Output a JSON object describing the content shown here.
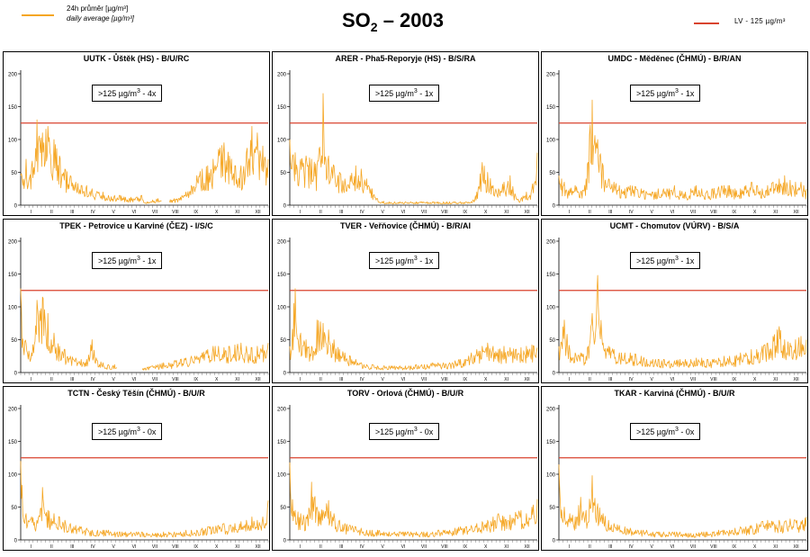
{
  "figure": {
    "title_prefix": "SO",
    "title_subscript": "2",
    "title_suffix": " – 2003",
    "legend_daily_cs": "24h průměr [µg/m³]",
    "legend_daily_en": "daily average [µg/m³]",
    "legend_lv": "LV    - 125 µg/m³",
    "colors": {
      "series": "#f5a623",
      "limit": "#d9432e",
      "axis": "#000000"
    }
  },
  "chart_data": [
    {
      "type": "line",
      "title": "UUTK - Ůštěk (HS) - B/U/RC",
      "ylim": [
        0,
        200
      ],
      "yticks": [
        "0",
        "50",
        "100",
        "150",
        "200"
      ],
      "xticks": [
        "I",
        "II",
        "III",
        "IV",
        "V",
        "VI",
        "VII",
        "VIII",
        "IX",
        "X",
        "XI",
        "XII"
      ],
      "limit_value": 125,
      "exceedance_prefix": ">125 µg/m",
      "exceedance_suffix": " - 4x",
      "envelope": [
        45,
        70,
        60,
        130,
        110,
        120,
        100,
        75,
        55,
        45,
        35,
        30,
        30,
        25,
        20,
        20,
        15,
        15,
        15,
        12,
        12,
        12,
        15,
        5,
        8,
        10,
        8,
        8,
        10,
        12,
        20,
        30,
        45,
        55,
        60,
        70,
        85,
        95,
        75,
        60,
        60,
        80,
        120,
        110,
        90,
        70
      ],
      "gaps": [
        [
          0.57,
          0.6
        ]
      ]
    },
    {
      "type": "line",
      "title": "ARER - Pha5-Reporyje (HS) - B/S/RA",
      "ylim": [
        0,
        200
      ],
      "yticks": [
        "0",
        "50",
        "100",
        "150",
        "200"
      ],
      "xticks": [
        "I",
        "II",
        "III",
        "IV",
        "V",
        "VI",
        "VII",
        "VIII",
        "IX",
        "X",
        "XI",
        "XII"
      ],
      "limit_value": 125,
      "exceedance_prefix": ">125 µg/m",
      "exceedance_suffix": " - 1x",
      "envelope": [
        100,
        80,
        70,
        75,
        70,
        60,
        170,
        75,
        60,
        50,
        40,
        45,
        60,
        55,
        40,
        25,
        10,
        6,
        5,
        5,
        5,
        5,
        5,
        5,
        5,
        5,
        5,
        5,
        5,
        5,
        5,
        5,
        5,
        5,
        20,
        65,
        50,
        30,
        25,
        35,
        45,
        15,
        10,
        20,
        25,
        80
      ],
      "gaps": []
    },
    {
      "type": "line",
      "title": "UMDC - Měděnec (ČHMÚ) - B/R/AN",
      "ylim": [
        0,
        200
      ],
      "yticks": [
        "0",
        "50",
        "100",
        "150",
        "200"
      ],
      "xticks": [
        "I",
        "II",
        "III",
        "IV",
        "V",
        "VI",
        "VII",
        "VIII",
        "IX",
        "X",
        "XI",
        "XII"
      ],
      "limit_value": 125,
      "exceedance_prefix": ">125 µg/m",
      "exceedance_suffix": " - 1x",
      "envelope": [
        45,
        35,
        25,
        30,
        20,
        40,
        160,
        100,
        60,
        40,
        35,
        30,
        25,
        30,
        28,
        25,
        20,
        20,
        25,
        25,
        25,
        30,
        22,
        20,
        25,
        30,
        25,
        22,
        25,
        28,
        30,
        30,
        25,
        25,
        30,
        35,
        30,
        25,
        30,
        35,
        40,
        45,
        38,
        35,
        35,
        25
      ],
      "gaps": []
    },
    {
      "type": "line",
      "title": "TPEK - Petrovice u Karviné (ČEZ) - I/S/C",
      "ylim": [
        0,
        200
      ],
      "yticks": [
        "0",
        "50",
        "100",
        "150",
        "200"
      ],
      "xticks": [
        "I",
        "II",
        "III",
        "IV",
        "V",
        "VI",
        "VII",
        "VIII",
        "IX",
        "X",
        "XI",
        "XII"
      ],
      "limit_value": 125,
      "exceedance_prefix": ">125 µg/m",
      "exceedance_suffix": " - 1x",
      "envelope": [
        128,
        45,
        30,
        110,
        115,
        90,
        60,
        40,
        35,
        25,
        22,
        20,
        20,
        50,
        18,
        15,
        12,
        12,
        10,
        8,
        8,
        8,
        8,
        8,
        10,
        12,
        15,
        15,
        18,
        20,
        22,
        25,
        25,
        30,
        35,
        40,
        40,
        38,
        40,
        42,
        45,
        40,
        38,
        40,
        42,
        45
      ],
      "gaps": [
        [
          0.39,
          0.49
        ]
      ]
    },
    {
      "type": "line",
      "title": "TVER - Veřňovice (ČHMÚ) - B/R/AI",
      "ylim": [
        0,
        200
      ],
      "yticks": [
        "0",
        "50",
        "100",
        "150",
        "200"
      ],
      "xticks": [
        "I",
        "II",
        "III",
        "IV",
        "V",
        "VI",
        "VII",
        "VIII",
        "IX",
        "X",
        "XI",
        "XII"
      ],
      "limit_value": 125,
      "exceedance_prefix": ">125 µg/m",
      "exceedance_suffix": " - 1x",
      "envelope": [
        40,
        128,
        60,
        50,
        40,
        80,
        75,
        65,
        50,
        35,
        30,
        25,
        20,
        15,
        12,
        12,
        10,
        10,
        10,
        10,
        10,
        10,
        10,
        12,
        12,
        12,
        15,
        15,
        15,
        15,
        18,
        20,
        20,
        30,
        35,
        40,
        45,
        40,
        35,
        40,
        38,
        35,
        38,
        40,
        42,
        38
      ],
      "gaps": []
    },
    {
      "type": "line",
      "title": "UCMT - Chomutov (VÚRV) - B/S/A",
      "ylim": [
        0,
        200
      ],
      "yticks": [
        "0",
        "50",
        "100",
        "150",
        "200"
      ],
      "xticks": [
        "I",
        "II",
        "III",
        "IV",
        "V",
        "VI",
        "VII",
        "VIII",
        "IX",
        "X",
        "XI",
        "XII"
      ],
      "limit_value": 125,
      "exceedance_prefix": ">125 µg/m",
      "exceedance_suffix": " - 1x",
      "envelope": [
        40,
        80,
        35,
        30,
        30,
        25,
        90,
        148,
        45,
        40,
        35,
        30,
        30,
        30,
        28,
        25,
        20,
        20,
        20,
        20,
        18,
        18,
        20,
        20,
        20,
        22,
        22,
        20,
        20,
        22,
        25,
        25,
        25,
        30,
        30,
        35,
        35,
        40,
        45,
        55,
        70,
        50,
        45,
        50,
        55,
        50
      ],
      "gaps": []
    },
    {
      "type": "line",
      "title": "TCTN - Český Těšín (ČHMÚ) - B/U/R",
      "ylim": [
        0,
        200
      ],
      "yticks": [
        "0",
        "50",
        "100",
        "150",
        "200"
      ],
      "xticks": [
        "I",
        "II",
        "III",
        "IV",
        "V",
        "VI",
        "VII",
        "VIII",
        "IX",
        "X",
        "XI",
        "XII"
      ],
      "limit_value": 125,
      "exceedance_prefix": ">125 µg/m",
      "exceedance_suffix": " - 0x",
      "envelope": [
        120,
        40,
        35,
        30,
        80,
        45,
        40,
        35,
        30,
        25,
        22,
        20,
        18,
        15,
        15,
        15,
        15,
        12,
        12,
        12,
        12,
        12,
        12,
        10,
        10,
        10,
        12,
        12,
        12,
        12,
        15,
        15,
        15,
        18,
        20,
        20,
        22,
        25,
        22,
        25,
        28,
        30,
        35,
        30,
        35,
        60
      ],
      "gaps": []
    },
    {
      "type": "line",
      "title": "TORV - Orlová (ČHMÚ) - B/U/R",
      "ylim": [
        0,
        200
      ],
      "yticks": [
        "0",
        "50",
        "100",
        "150",
        "200"
      ],
      "xticks": [
        "I",
        "II",
        "III",
        "IV",
        "V",
        "VI",
        "VII",
        "VIII",
        "IX",
        "X",
        "XI",
        "XII"
      ],
      "limit_value": 125,
      "exceedance_prefix": ">125 µg/m",
      "exceedance_suffix": " - 0x",
      "envelope": [
        118,
        45,
        40,
        35,
        88,
        50,
        45,
        60,
        40,
        30,
        25,
        22,
        20,
        18,
        15,
        15,
        15,
        12,
        12,
        12,
        12,
        12,
        12,
        12,
        12,
        12,
        12,
        15,
        15,
        15,
        18,
        20,
        20,
        22,
        25,
        28,
        30,
        35,
        40,
        35,
        38,
        42,
        45,
        40,
        50,
        62
      ],
      "gaps": []
    },
    {
      "type": "line",
      "title": "TKAR - Karviná (ČHMÚ) - B/U/R",
      "ylim": [
        0,
        200
      ],
      "yticks": [
        "0",
        "50",
        "100",
        "150",
        "200"
      ],
      "xticks": [
        "I",
        "II",
        "III",
        "IV",
        "V",
        "VI",
        "VII",
        "VIII",
        "IX",
        "X",
        "XI",
        "XII"
      ],
      "limit_value": 125,
      "exceedance_prefix": ">125 µg/m",
      "exceedance_suffix": " - 0x",
      "envelope": [
        115,
        50,
        40,
        35,
        65,
        45,
        98,
        55,
        40,
        30,
        25,
        22,
        20,
        18,
        15,
        15,
        15,
        12,
        12,
        12,
        12,
        12,
        12,
        10,
        10,
        10,
        12,
        12,
        12,
        15,
        15,
        15,
        18,
        20,
        20,
        22,
        25,
        28,
        30,
        28,
        30,
        28,
        32,
        30,
        28,
        35
      ],
      "gaps": []
    }
  ]
}
